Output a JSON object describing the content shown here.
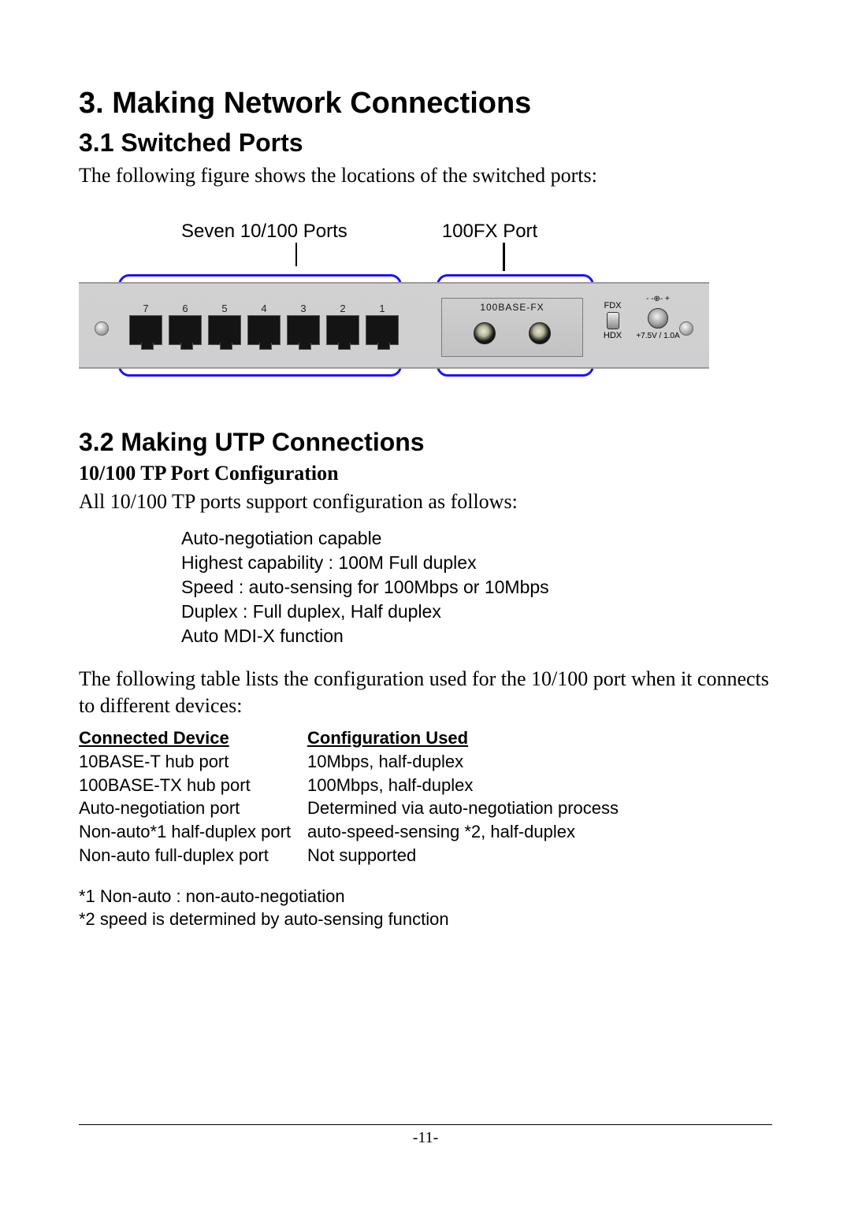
{
  "headings": {
    "h1": "3.  Making  Network  Connections",
    "h2a": "3.1 Switched Ports",
    "h2b": "3.2 Making UTP Connections",
    "h3": "10/100 TP Port Configuration"
  },
  "para1": "The following figure shows the locations of the switched ports:",
  "fig_labels": {
    "left": "Seven 10/100 Ports",
    "right": "100FX Port"
  },
  "device": {
    "port_numbers": [
      "7",
      "6",
      "5",
      "4",
      "3",
      "2",
      "1"
    ],
    "fx_label": "100BASE-FX",
    "fdx_top": "FDX",
    "fdx_bot": "HDX",
    "dc_top": "- -⊕- +",
    "dc_bot": "+7.5V / 1.0A",
    "callout_box_color": "#1f12ff"
  },
  "para2": "All 10/100 TP ports support configuration as follows:",
  "config_lines": [
    "Auto-negotiation capable",
    "Highest capability : 100M Full duplex",
    "Speed : auto-sensing for 100Mbps or 10Mbps",
    "Duplex : Full duplex, Half duplex",
    "Auto MDI-X function"
  ],
  "para3": "The following table lists the configuration used for the 10/100 port  when it connects to different devices:",
  "table": {
    "header": [
      "Connected  Device",
      "Configuration  Used"
    ],
    "rows": [
      [
        "10BASE-T hub port",
        "10Mbps, half-duplex"
      ],
      [
        "100BASE-TX hub port",
        "100Mbps, half-duplex"
      ],
      [
        "Auto-negotiation port",
        "Determined via auto-negotiation process"
      ],
      [
        "Non-auto*1 half-duplex port",
        "auto-speed-sensing *2, half-duplex"
      ],
      [
        "Non-auto full-duplex port",
        "Not supported"
      ]
    ]
  },
  "footnotes": [
    "*1 Non-auto : non-auto-negotiation",
    "*2 speed is determined by auto-sensing function"
  ],
  "page_number": "-11-"
}
